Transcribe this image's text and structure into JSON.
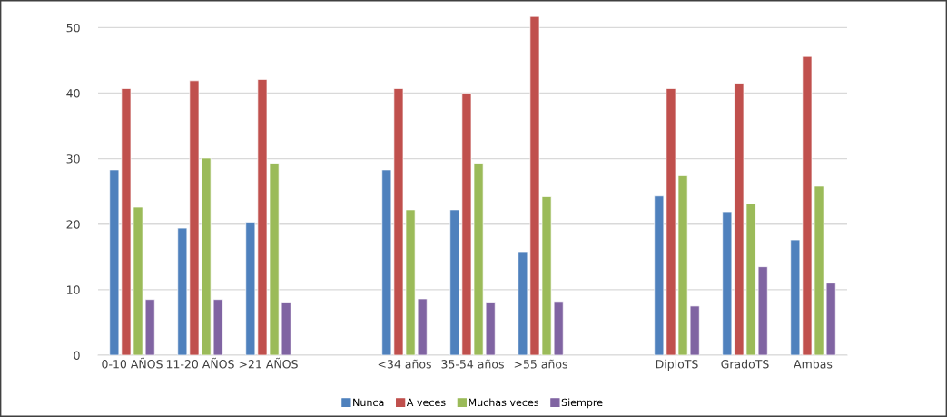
{
  "chart_data": {
    "type": "bar",
    "categories": [
      "0-10 AÑOS",
      "11-20 AÑOS",
      ">21 AÑOS",
      null,
      "<34 años",
      "35-54 años",
      ">55 años",
      null,
      "DiploTS",
      "GradoTS",
      "Ambas"
    ],
    "series": [
      {
        "name": "Nunca",
        "color": "#4f81bd",
        "values": [
          28.3,
          19.4,
          20.3,
          null,
          28.3,
          22.2,
          15.8,
          null,
          24.3,
          21.9,
          17.6
        ]
      },
      {
        "name": "A veces",
        "color": "#c0504d",
        "values": [
          40.7,
          41.9,
          42.1,
          null,
          40.7,
          40.0,
          51.7,
          null,
          40.7,
          41.5,
          45.6
        ]
      },
      {
        "name": "Muchas veces",
        "color": "#9bbb59",
        "values": [
          22.6,
          30.1,
          29.3,
          null,
          22.2,
          29.3,
          24.2,
          null,
          27.4,
          23.1,
          25.8
        ]
      },
      {
        "name": "Siempre",
        "color": "#8064a2",
        "values": [
          8.5,
          8.5,
          8.1,
          null,
          8.6,
          8.1,
          8.2,
          null,
          7.5,
          13.5,
          11.0
        ]
      }
    ],
    "ylim": [
      0,
      52
    ],
    "yticks": [
      0,
      10,
      20,
      30,
      40,
      50
    ],
    "grid": "y",
    "legend": "bottom"
  }
}
